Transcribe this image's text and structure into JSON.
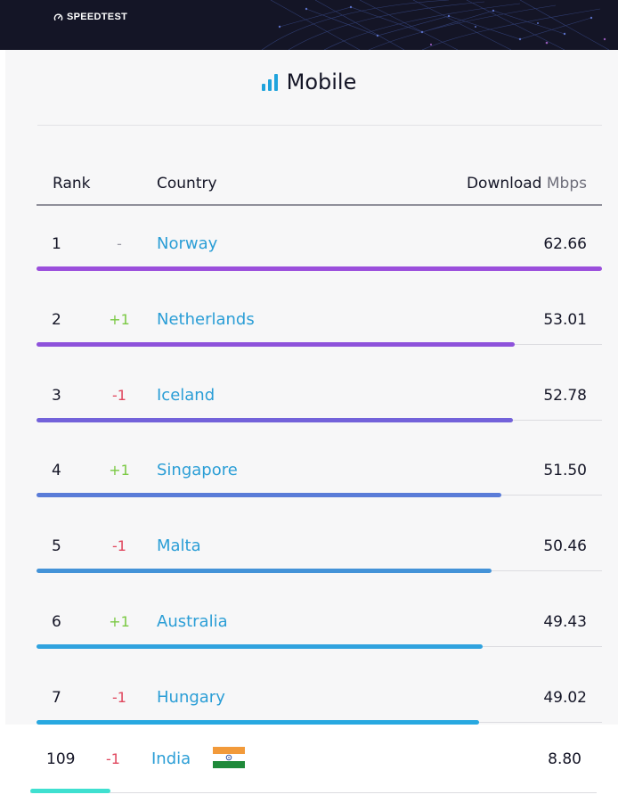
{
  "header": {
    "logo_text": "SPEEDTEST",
    "background": "#141526"
  },
  "panel": {
    "title": "Mobile",
    "icon": "signal-bars-icon",
    "accent": "#1fa3dc"
  },
  "columns": {
    "rank": "Rank",
    "country": "Country",
    "download": "Download",
    "unit": "Mbps"
  },
  "rows": [
    {
      "rank": "1",
      "change": "-",
      "change_type": "none",
      "country": "Norway",
      "value": "62.66",
      "speed": 62.66,
      "bar_color": "#9b4fdc"
    },
    {
      "rank": "2",
      "change": "+1",
      "change_type": "up",
      "country": "Netherlands",
      "value": "53.01",
      "speed": 53.01,
      "bar_color": "#8e52db"
    },
    {
      "rank": "3",
      "change": "-1",
      "change_type": "down",
      "country": "Iceland",
      "value": "52.78",
      "speed": 52.78,
      "bar_color": "#7362da"
    },
    {
      "rank": "4",
      "change": "+1",
      "change_type": "up",
      "country": "Singapore",
      "value": "51.50",
      "speed": 51.5,
      "bar_color": "#5a7cd8"
    },
    {
      "rank": "5",
      "change": "-1",
      "change_type": "down",
      "country": "Malta",
      "value": "50.46",
      "speed": 50.46,
      "bar_color": "#4493d8"
    },
    {
      "rank": "6",
      "change": "+1",
      "change_type": "up",
      "country": "Australia",
      "value": "49.43",
      "speed": 49.43,
      "bar_color": "#30a3df"
    },
    {
      "rank": "7",
      "change": "-1",
      "change_type": "down",
      "country": "Hungary",
      "value": "49.02",
      "speed": 49.02,
      "bar_color": "#28a8e0"
    }
  ],
  "highlight_row": {
    "rank": "109",
    "change": "-1",
    "change_type": "down",
    "country": "India",
    "flag_icon": "india-flag-icon",
    "value": "8.80",
    "speed": 8.8,
    "bar_color": "#3fe0d0"
  },
  "colors": {
    "up": "#7ac943",
    "down": "#e0475e",
    "none": "#9a9aa5",
    "link": "#2b9ed6"
  }
}
